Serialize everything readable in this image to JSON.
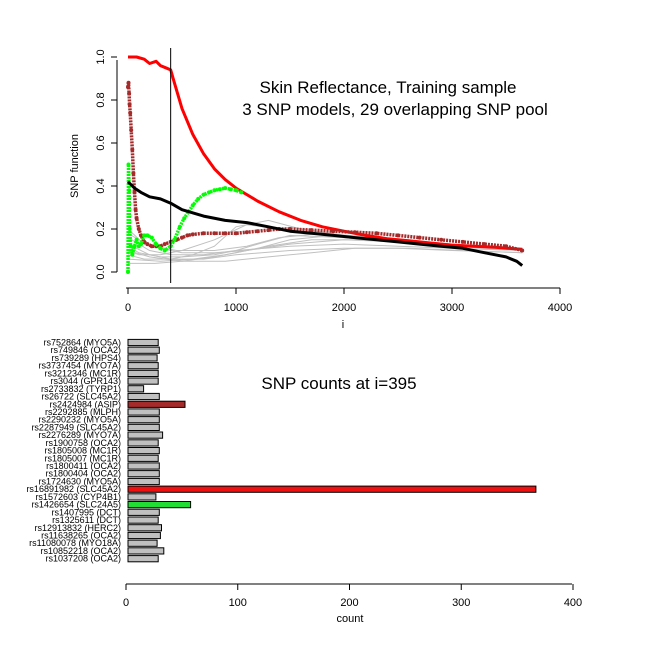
{
  "chart_data": [
    {
      "type": "line",
      "title_lines": [
        "Skin Reflectance, Training sample",
        "3 SNP models, 29 overlapping SNP pool"
      ],
      "xlabel": "i",
      "ylabel": "SNP function",
      "xlim": [
        0,
        4000
      ],
      "ylim": [
        0,
        1
      ],
      "xticks": [
        "0",
        "1000",
        "2000",
        "3000",
        "4000"
      ],
      "yticks": [
        "0.0",
        "0.2",
        "0.4",
        "0.6",
        "0.8",
        "1.0"
      ],
      "vline_x": 395,
      "series": [
        {
          "color": "#ff0000",
          "style": "line",
          "x": [
            0,
            80,
            150,
            200,
            260,
            300,
            350,
            395,
            430,
            500,
            600,
            700,
            800,
            900,
            1000,
            1200,
            1400,
            1600,
            1800,
            2000,
            2200,
            2400,
            2600,
            2800,
            3000,
            3200,
            3400,
            3650
          ],
          "y": [
            1.0,
            1.0,
            0.99,
            0.97,
            0.98,
            0.96,
            0.95,
            0.94,
            0.88,
            0.76,
            0.64,
            0.55,
            0.48,
            0.43,
            0.39,
            0.33,
            0.28,
            0.24,
            0.21,
            0.19,
            0.17,
            0.155,
            0.145,
            0.135,
            0.125,
            0.12,
            0.115,
            0.105
          ]
        },
        {
          "color": "#a52a2a",
          "style": "points",
          "x": [
            0,
            5,
            10,
            15,
            20,
            30,
            40,
            50,
            60,
            70,
            80,
            100,
            120,
            150,
            180,
            220,
            260,
            300,
            340,
            395,
            450,
            500,
            550,
            600,
            700,
            800,
            900,
            1000,
            1100,
            1200,
            1300,
            1400,
            1500,
            1700,
            1900,
            2100,
            2300,
            2500,
            2700,
            2900,
            3100,
            3300,
            3500,
            3650
          ],
          "y": [
            0.86,
            0.88,
            0.83,
            0.78,
            0.74,
            0.66,
            0.57,
            0.46,
            0.37,
            0.29,
            0.25,
            0.2,
            0.17,
            0.14,
            0.13,
            0.12,
            0.12,
            0.12,
            0.13,
            0.14,
            0.15,
            0.16,
            0.17,
            0.175,
            0.18,
            0.18,
            0.18,
            0.18,
            0.185,
            0.19,
            0.195,
            0.2,
            0.2,
            0.195,
            0.19,
            0.185,
            0.18,
            0.17,
            0.16,
            0.15,
            0.14,
            0.13,
            0.12,
            0.1
          ]
        },
        {
          "color": "#00ff00",
          "style": "points",
          "x": [
            0,
            5,
            10,
            15,
            25,
            40,
            60,
            80,
            100,
            120,
            150,
            180,
            220,
            260,
            300,
            340,
            395,
            430,
            480,
            520,
            560,
            600,
            650,
            700,
            750,
            800,
            850,
            900,
            950,
            1000,
            1050
          ],
          "y": [
            0.0,
            0.5,
            0.38,
            0.2,
            0.12,
            0.08,
            0.12,
            0.15,
            0.12,
            0.13,
            0.17,
            0.17,
            0.16,
            0.13,
            0.11,
            0.1,
            0.12,
            0.15,
            0.21,
            0.25,
            0.28,
            0.31,
            0.34,
            0.36,
            0.37,
            0.38,
            0.385,
            0.39,
            0.385,
            0.38,
            0.37
          ]
        },
        {
          "color": "#000000",
          "style": "line",
          "x": [
            0,
            20,
            60,
            120,
            200,
            300,
            395,
            500,
            700,
            900,
            1100,
            1300,
            1500,
            1700,
            1900,
            2100,
            2300,
            2500,
            2700,
            2900,
            3100,
            3300,
            3500,
            3600,
            3650
          ],
          "y": [
            0.42,
            0.41,
            0.39,
            0.37,
            0.35,
            0.34,
            0.32,
            0.29,
            0.26,
            0.24,
            0.23,
            0.21,
            0.19,
            0.18,
            0.17,
            0.16,
            0.15,
            0.14,
            0.13,
            0.12,
            0.11,
            0.09,
            0.07,
            0.05,
            0.03
          ]
        }
      ],
      "gray_series": [
        {
          "x": [
            0,
            100,
            300,
            500,
            800,
            1000,
            1200,
            1500,
            2000,
            2500,
            3000,
            3300,
            3650
          ],
          "y": [
            0.12,
            0.09,
            0.07,
            0.07,
            0.08,
            0.1,
            0.13,
            0.17,
            0.16,
            0.14,
            0.13,
            0.12,
            0.1
          ]
        },
        {
          "x": [
            0,
            100,
            300,
            500,
            800,
            1100,
            1400,
            1700,
            2000,
            2500,
            3000,
            3650
          ],
          "y": [
            0.1,
            0.08,
            0.08,
            0.1,
            0.15,
            0.22,
            0.2,
            0.18,
            0.16,
            0.14,
            0.13,
            0.1
          ]
        },
        {
          "x": [
            0,
            150,
            395,
            600,
            800,
            1000,
            1300,
            1600,
            2000,
            2500,
            3000,
            3650
          ],
          "y": [
            0.08,
            0.06,
            0.06,
            0.08,
            0.12,
            0.21,
            0.24,
            0.2,
            0.17,
            0.15,
            0.13,
            0.11
          ]
        },
        {
          "x": [
            0,
            200,
            400,
            700,
            1000,
            1500,
            2000,
            2500,
            3000,
            3650
          ],
          "y": [
            0.16,
            0.1,
            0.08,
            0.08,
            0.1,
            0.12,
            0.13,
            0.12,
            0.11,
            0.1
          ]
        },
        {
          "x": [
            0,
            200,
            400,
            700,
            1000,
            1500,
            2000,
            2500,
            3000,
            3650
          ],
          "y": [
            0.13,
            0.08,
            0.06,
            0.06,
            0.08,
            0.1,
            0.11,
            0.11,
            0.1,
            0.09
          ]
        },
        {
          "x": [
            0,
            200,
            500,
            800,
            1100,
            1500,
            2000,
            2500,
            3000,
            3650
          ],
          "y": [
            0.18,
            0.12,
            0.09,
            0.09,
            0.1,
            0.13,
            0.15,
            0.14,
            0.12,
            0.1
          ]
        },
        {
          "x": [
            0,
            300,
            600,
            900,
            1200,
            1500,
            1900,
            2400,
            3000,
            3650
          ],
          "y": [
            0.06,
            0.05,
            0.06,
            0.08,
            0.11,
            0.15,
            0.17,
            0.15,
            0.13,
            0.11
          ]
        },
        {
          "x": [
            0,
            150,
            450,
            800,
            1100,
            1400,
            1800,
            2300,
            3000,
            3650
          ],
          "y": [
            0.2,
            0.13,
            0.1,
            0.1,
            0.12,
            0.16,
            0.18,
            0.16,
            0.13,
            0.1
          ]
        },
        {
          "x": [
            0,
            250,
            500,
            800,
            1000,
            1300,
            1700,
            2200,
            3000,
            3650
          ],
          "y": [
            0.04,
            0.04,
            0.05,
            0.07,
            0.09,
            0.12,
            0.15,
            0.15,
            0.13,
            0.11
          ]
        },
        {
          "x": [
            0,
            200,
            500,
            900,
            1300,
            1700,
            2100,
            2600,
            3100,
            3650
          ],
          "y": [
            0.1,
            0.07,
            0.05,
            0.05,
            0.07,
            0.09,
            0.11,
            0.11,
            0.1,
            0.09
          ]
        }
      ]
    },
    {
      "type": "bar",
      "orientation": "horizontal",
      "title": "SNP counts at i=395",
      "xlabel": "count",
      "xlim": [
        0,
        400
      ],
      "xticks": [
        "0",
        "100",
        "200",
        "300",
        "400"
      ],
      "categories": [
        "rs752864 (MYO5A)",
        "rs749846 (OCA2)",
        "rs739289 (HPS4)",
        "rs3737454 (MYO7A)",
        "rs3212346 (MC1R)",
        "rs3044 (GPR143)",
        "rs2733832 (TYRP1)",
        "rs26722 (SLC45A2)",
        "rs2424984 (ASIP)",
        "rs2292885 (MLPH)",
        "rs2290232 (MYO5A)",
        "rs2287949 (SLC45A2)",
        "rs2276289 (MYO7A)",
        "rs1900758 (OCA2)",
        "rs1805008 (MC1R)",
        "rs1805007 (MC1R)",
        "rs1800411 (OCA2)",
        "rs1800404 (OCA2)",
        "rs1724630 (MYO5A)",
        "rs16891982 (SLC45A2)",
        "rs1572603 (CYP4B1)",
        "rs1426654 (SLC24A5)",
        "rs1407995 (DCT)",
        "rs1325611 (DCT)",
        "rs12913832 (HERC2)",
        "rs11638265 (OCA2)",
        "rs11080078 (MYO18A)",
        "rs10852218 (OCA2)",
        "rs1037208 (OCA2)"
      ],
      "values": [
        27,
        28,
        26,
        27,
        27,
        27,
        14,
        28,
        51,
        28,
        28,
        28,
        31,
        27,
        28,
        27,
        28,
        28,
        28,
        365,
        25,
        56,
        28,
        27,
        30,
        29,
        26,
        32,
        27
      ],
      "colors": [
        "#c0c0c0",
        "#c0c0c0",
        "#c0c0c0",
        "#c0c0c0",
        "#c0c0c0",
        "#c0c0c0",
        "#c0c0c0",
        "#c0c0c0",
        "#a52a2a",
        "#c0c0c0",
        "#c0c0c0",
        "#c0c0c0",
        "#c0c0c0",
        "#c0c0c0",
        "#c0c0c0",
        "#c0c0c0",
        "#c0c0c0",
        "#c0c0c0",
        "#c0c0c0",
        "#ee1111",
        "#c0c0c0",
        "#22dd33",
        "#c0c0c0",
        "#c0c0c0",
        "#c0c0c0",
        "#c0c0c0",
        "#c0c0c0",
        "#c0c0c0",
        "#c0c0c0"
      ]
    }
  ]
}
